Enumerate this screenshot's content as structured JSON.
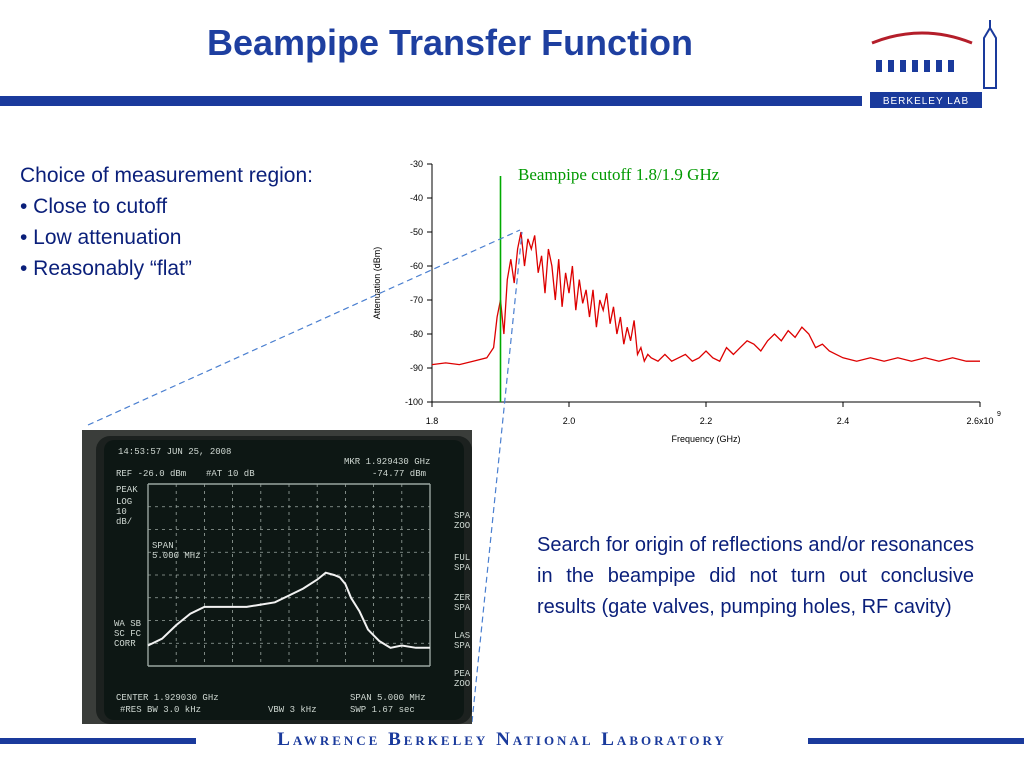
{
  "slide": {
    "title": "Beampipe Transfer Function",
    "bullets": {
      "heading": "Choice of measurement region:",
      "items": [
        "• Close to cutoff",
        "• Low attenuation",
        "• Reasonably “flat”"
      ]
    },
    "description": "Search for origin of reflections and/or resonances in the beampipe did not turn out conclusive results (gate valves, pumping holes, RF cavity)",
    "footer": "Lawrence Berkeley National Laboratory",
    "logo_text": "BERKELEY LAB",
    "colors": {
      "title": "#1e3fa0",
      "bar": "#1a3a9c",
      "text": "#0a1f7a",
      "trace": "#dd0000",
      "cutoff": "#00aa00",
      "screen_trace": "#ffffff"
    }
  },
  "chart_data": {
    "type": "line",
    "annotation": "Beampipe cutoff 1.8/1.9 GHz",
    "cutoff_x": 1.9,
    "xlabel": "Frequency (GHz)",
    "ylabel": "Attenuation (dBm)",
    "xlim": [
      1.8,
      2.6
    ],
    "ylim": [
      -100,
      -30
    ],
    "xticks": [
      1.8,
      2.0,
      2.2,
      2.4,
      2.6
    ],
    "xtick_labels": [
      "1.8",
      "2.0",
      "2.2",
      "2.4",
      "2.6x10"
    ],
    "x_exponent": "9",
    "yticks": [
      -30,
      -40,
      -50,
      -60,
      -70,
      -80,
      -90,
      -100
    ],
    "ytick_labels": [
      "-30",
      "-40",
      "-50",
      "-60",
      "-70",
      "-80",
      "-90",
      "-100"
    ],
    "series": [
      {
        "x": [
          1.8,
          1.82,
          1.84,
          1.86,
          1.88,
          1.89,
          1.895,
          1.9,
          1.905,
          1.91,
          1.915,
          1.92,
          1.925,
          1.93,
          1.935,
          1.94,
          1.945,
          1.95,
          1.955,
          1.96,
          1.965,
          1.97,
          1.975,
          1.98,
          1.985,
          1.99,
          1.995,
          2.0,
          2.005,
          2.01,
          2.015,
          2.02,
          2.025,
          2.03,
          2.035,
          2.04,
          2.045,
          2.05,
          2.055,
          2.06,
          2.065,
          2.07,
          2.075,
          2.08,
          2.085,
          2.09,
          2.095,
          2.1,
          2.105,
          2.11,
          2.115,
          2.12,
          2.13,
          2.14,
          2.15,
          2.16,
          2.17,
          2.18,
          2.19,
          2.2,
          2.21,
          2.22,
          2.23,
          2.24,
          2.25,
          2.26,
          2.27,
          2.28,
          2.29,
          2.3,
          2.31,
          2.32,
          2.33,
          2.34,
          2.35,
          2.36,
          2.37,
          2.38,
          2.39,
          2.4,
          2.42,
          2.44,
          2.46,
          2.48,
          2.5,
          2.52,
          2.54,
          2.56,
          2.58,
          2.6
        ],
        "y": [
          -89,
          -88.5,
          -89,
          -88,
          -87,
          -84,
          -75,
          -70,
          -80,
          -64,
          -58,
          -65,
          -55,
          -50,
          -60,
          -52,
          -55,
          -51,
          -62,
          -57,
          -68,
          -55,
          -60,
          -70,
          -58,
          -72,
          -62,
          -68,
          -60,
          -73,
          -64,
          -71,
          -67,
          -75,
          -67,
          -78,
          -70,
          -73,
          -68,
          -77,
          -72,
          -80,
          -75,
          -83,
          -78,
          -82,
          -76,
          -86,
          -84,
          -88,
          -86,
          -87,
          -88,
          -86,
          -88,
          -87,
          -86,
          -88,
          -87,
          -85,
          -87,
          -88,
          -84,
          -86,
          -84,
          -82,
          -83,
          -85,
          -82,
          -80,
          -82,
          -79,
          -81,
          -78,
          -80,
          -84,
          -83,
          -85,
          -86,
          -87,
          -88,
          -87,
          -88,
          -87,
          -88,
          -87,
          -88,
          -87,
          -88,
          -88
        ]
      }
    ]
  },
  "screen": {
    "header_left": "14:53:57 JUN 25, 2008",
    "ref": "REF -26.0 dBm",
    "atten": "#AT 10 dB",
    "marker_freq": "MKR 1.929430 GHz",
    "marker_level": "-74.77 dBm",
    "left_labels": [
      "PEAK",
      "LOG",
      "10",
      "dB/"
    ],
    "span_label": "SPAN",
    "span_value": "5.000 MHz",
    "mode_labels": [
      "WA SB",
      "SC FC",
      "CORR"
    ],
    "center": "CENTER 1.929030 GHz",
    "rbw": "#RES BW 3.0 kHz",
    "vbw": "VBW 3 kHz",
    "span": "SPAN 5.000 MHz",
    "sweep": "SWP 1.67  sec",
    "softkeys": [
      "SPA",
      "ZOO",
      "FUL",
      "SPA",
      "ZER",
      "SPA",
      "LAS",
      "SPA",
      "PEA",
      "ZOO"
    ],
    "trace": {
      "x": [
        0.0,
        0.05,
        0.1,
        0.15,
        0.2,
        0.25,
        0.3,
        0.35,
        0.4,
        0.45,
        0.5,
        0.55,
        0.6,
        0.63,
        0.66,
        0.68,
        0.7,
        0.72,
        0.75,
        0.78,
        0.82,
        0.86,
        0.9,
        0.95,
        1.0
      ],
      "y": [
        -97,
        -94,
        -88,
        -83,
        -80,
        -80,
        -80,
        -80,
        -79,
        -78,
        -75,
        -72,
        -68,
        -65,
        -66,
        -67,
        -70,
        -76,
        -82,
        -90,
        -95,
        -98,
        -97,
        -98,
        -98
      ]
    }
  }
}
